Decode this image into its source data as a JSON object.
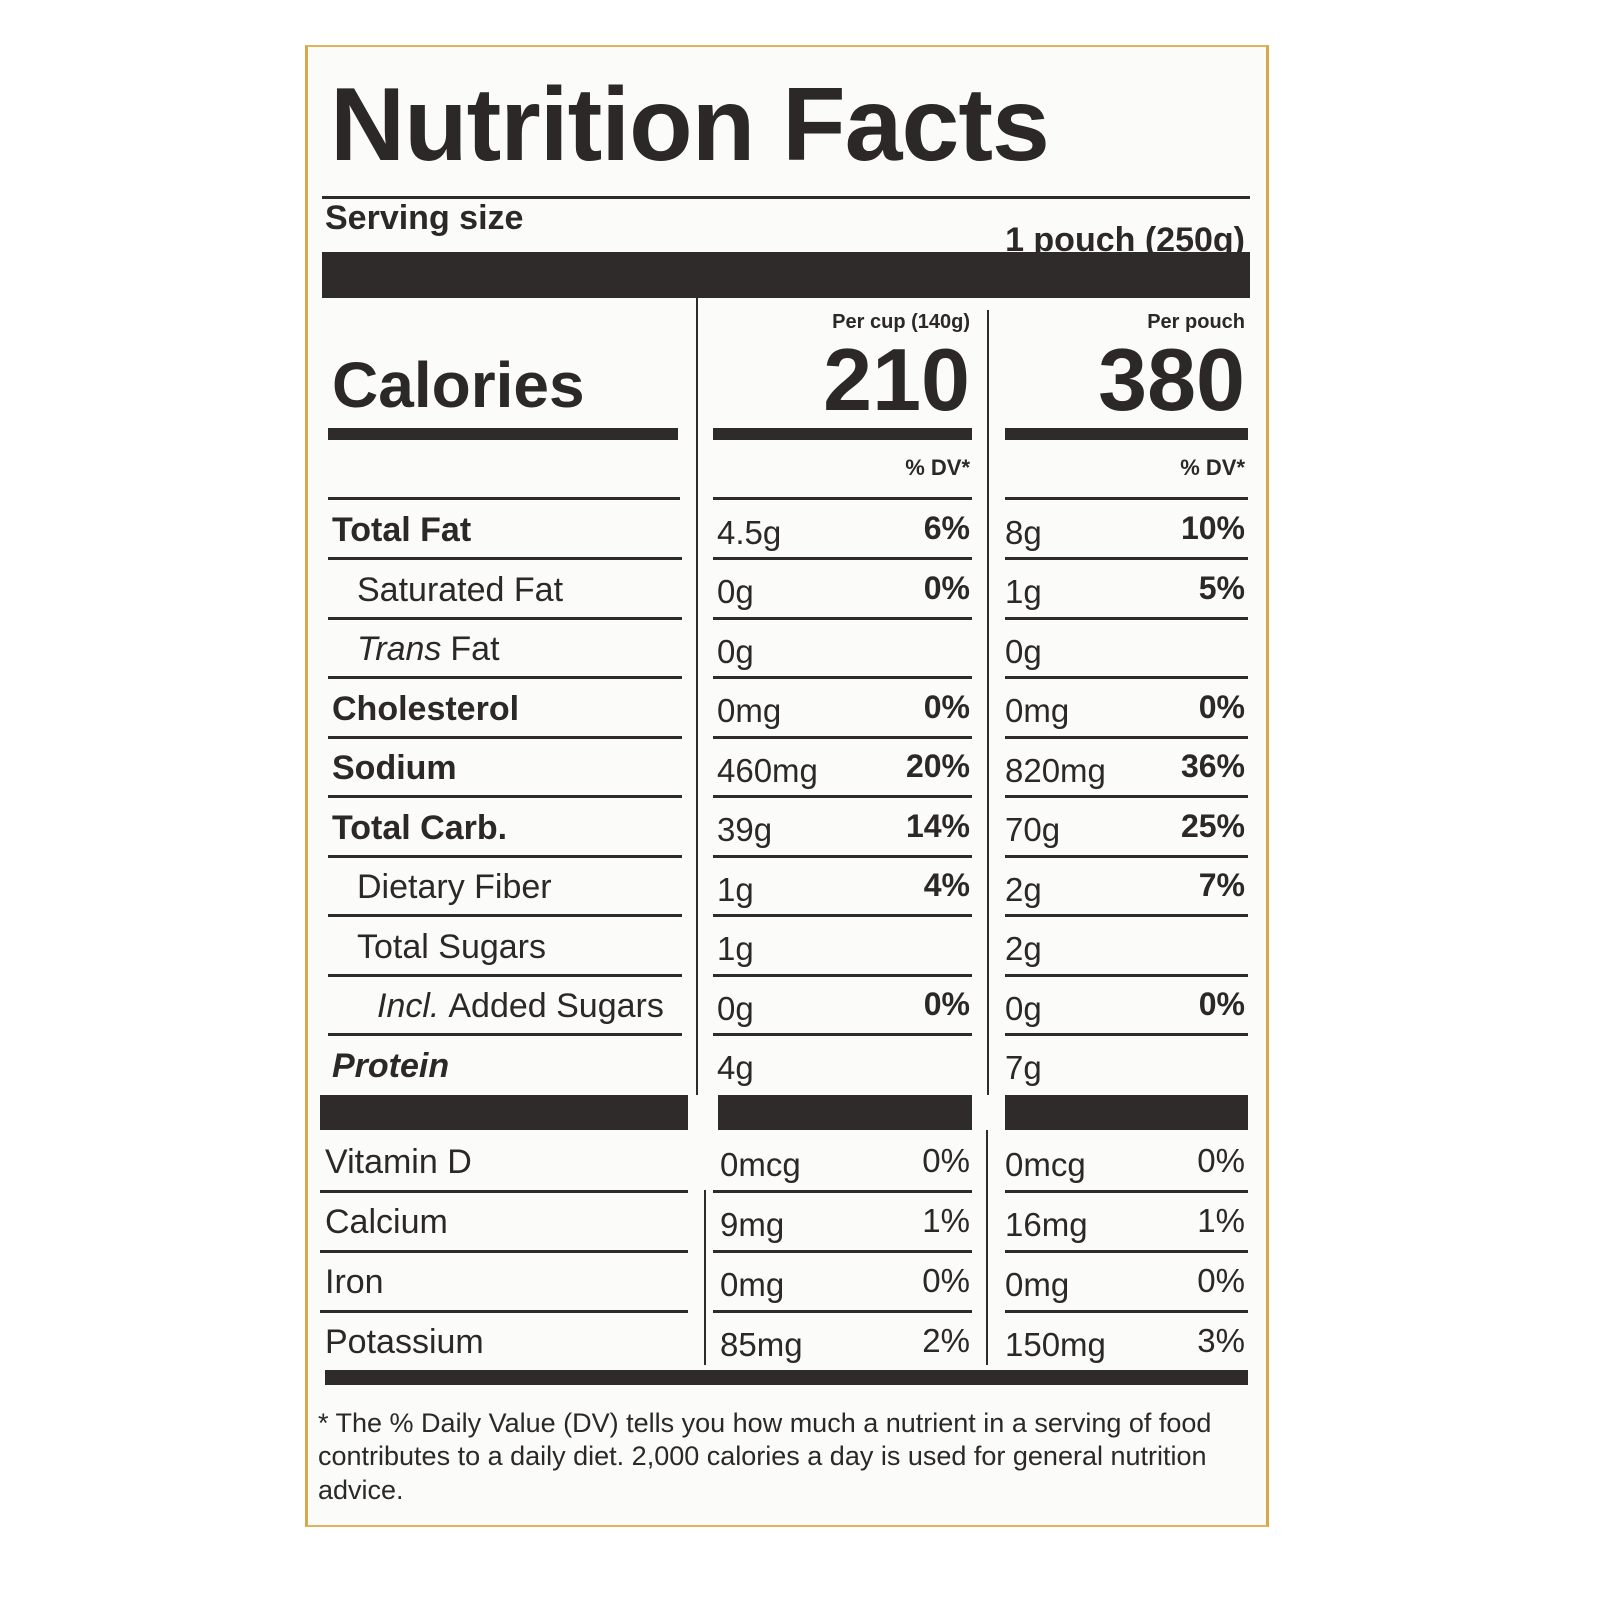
{
  "title": "Nutrition Facts",
  "serving": {
    "label": "Serving size",
    "value": "1 pouch (250g)"
  },
  "columns": [
    {
      "header": "Per cup (140g)",
      "calories": "210",
      "dv_header": "% DV*"
    },
    {
      "header": "Per pouch",
      "calories": "380",
      "dv_header": "% DV*"
    }
  ],
  "calories_label": "Calories",
  "rows": [
    {
      "name": "Total Fat",
      "cup": {
        "amount": "4.5g",
        "dv": "6%"
      },
      "pouch": {
        "amount": "8g",
        "dv": "10%"
      }
    },
    {
      "name": "Saturated Fat",
      "cup": {
        "amount": "0g",
        "dv": "0%"
      },
      "pouch": {
        "amount": "1g",
        "dv": "5%"
      }
    },
    {
      "prefix": "Trans",
      "name": "Fat",
      "cup": {
        "amount": "0g"
      },
      "pouch": {
        "amount": "0g"
      }
    },
    {
      "name": "Cholesterol",
      "cup": {
        "amount": "0mg",
        "dv": "0%"
      },
      "pouch": {
        "amount": "0mg",
        "dv": "0%"
      }
    },
    {
      "name": "Sodium",
      "cup": {
        "amount": "460mg",
        "dv": "20%"
      },
      "pouch": {
        "amount": "820mg",
        "dv": "36%"
      }
    },
    {
      "name": "Total Carb.",
      "cup": {
        "amount": "39g",
        "dv": "14%"
      },
      "pouch": {
        "amount": "70g",
        "dv": "25%"
      }
    },
    {
      "name": "Dietary Fiber",
      "cup": {
        "amount": "1g",
        "dv": "4%"
      },
      "pouch": {
        "amount": "2g",
        "dv": "7%"
      }
    },
    {
      "name": "Total Sugars",
      "cup": {
        "amount": "1g"
      },
      "pouch": {
        "amount": "2g"
      }
    },
    {
      "prefix": "Incl.",
      "name": "Added Sugars",
      "cup": {
        "amount": "0g",
        "dv": "0%"
      },
      "pouch": {
        "amount": "0g",
        "dv": "0%"
      }
    },
    {
      "name": "Protein",
      "cup": {
        "amount": "4g"
      },
      "pouch": {
        "amount": "7g"
      }
    }
  ],
  "vitamins": [
    {
      "name": "Vitamin D",
      "cup": {
        "amount": "0mcg",
        "dv": "0%"
      },
      "pouch": {
        "amount": "0mcg",
        "dv": "0%"
      }
    },
    {
      "name": "Calcium",
      "cup": {
        "amount": "9mg",
        "dv": "1%"
      },
      "pouch": {
        "amount": "16mg",
        "dv": "1%"
      }
    },
    {
      "name": "Iron",
      "cup": {
        "amount": "0mg",
        "dv": "0%"
      },
      "pouch": {
        "amount": "0mg",
        "dv": "0%"
      }
    },
    {
      "name": "Potassium",
      "cup": {
        "amount": "85mg",
        "dv": "2%"
      },
      "pouch": {
        "amount": "150mg",
        "dv": "3%"
      }
    }
  ],
  "footnote": "* The % Daily Value (DV) tells you how much a nutrient in a serving of food contributes to a daily diet. 2,000 calories a day is used for general nutrition advice."
}
